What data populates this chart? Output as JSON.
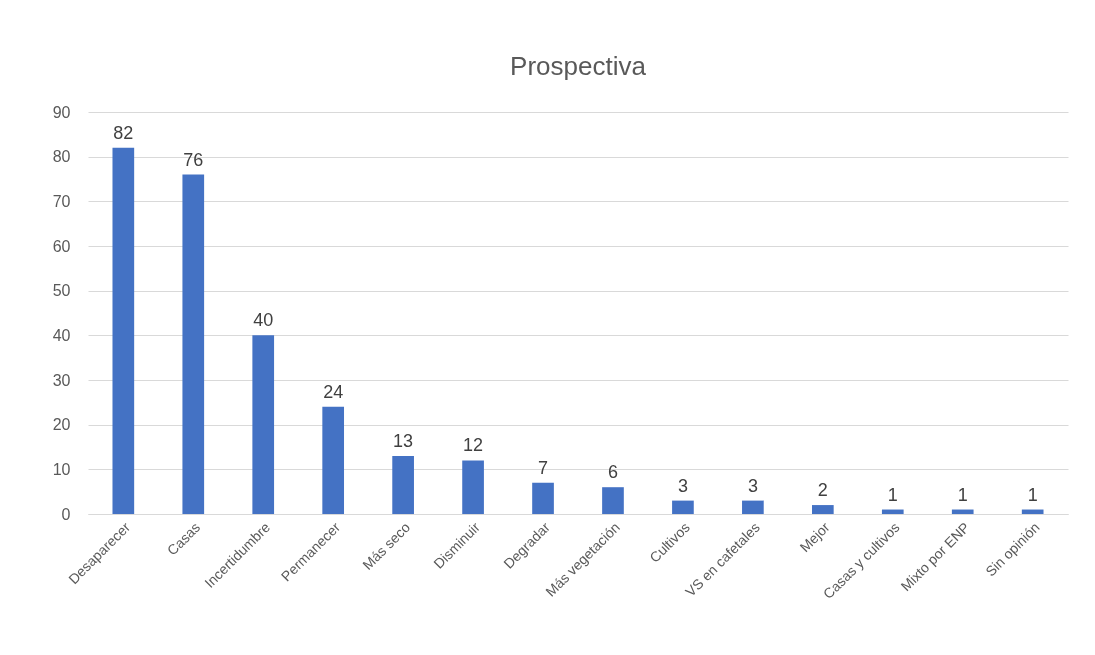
{
  "chart_data": {
    "type": "bar",
    "title": "Prospectiva",
    "categories": [
      "Desaparecer",
      "Casas",
      "Incertidumbre",
      "Permanecer",
      "Más seco",
      "Disminuir",
      "Degradar",
      "Más vegetación",
      "Cultivos",
      "VS en cafetales",
      "Mejor",
      "Casas y cultivos",
      "Mixto por ENP",
      "Sin opinión"
    ],
    "values": [
      82,
      76,
      40,
      24,
      13,
      12,
      7,
      6,
      3,
      3,
      2,
      1,
      1,
      1
    ],
    "color": "#4472c4",
    "ylim": [
      0,
      90
    ],
    "yticks": [
      0,
      10,
      20,
      30,
      40,
      50,
      60,
      70,
      80,
      90
    ],
    "grid": "y",
    "data_labels": true
  }
}
